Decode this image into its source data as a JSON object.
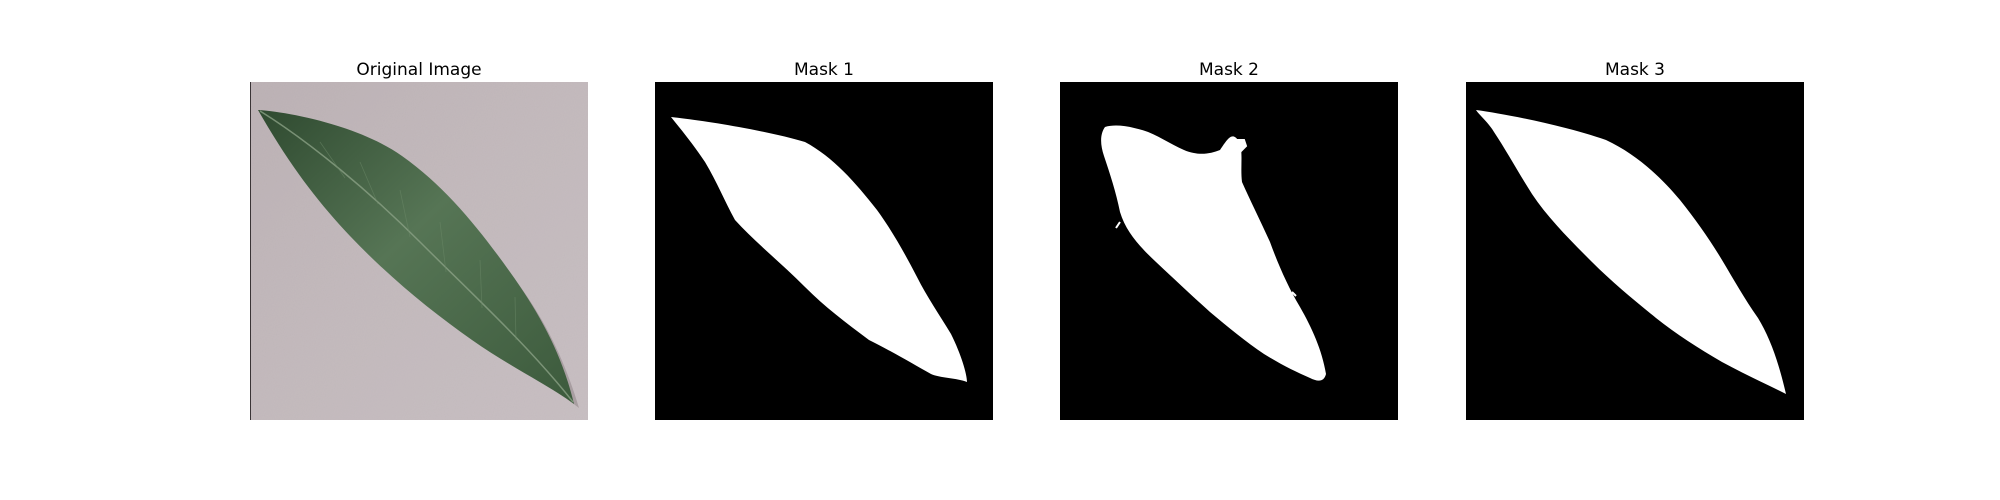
{
  "panels": [
    {
      "title": "Original Image"
    },
    {
      "title": "Mask 1"
    },
    {
      "title": "Mask 2"
    },
    {
      "title": "Mask 3"
    }
  ],
  "colors": {
    "background": "#c8bfc3",
    "leaf": "#4a6a48",
    "mask_bg": "#000000",
    "mask_fg": "#ffffff"
  }
}
